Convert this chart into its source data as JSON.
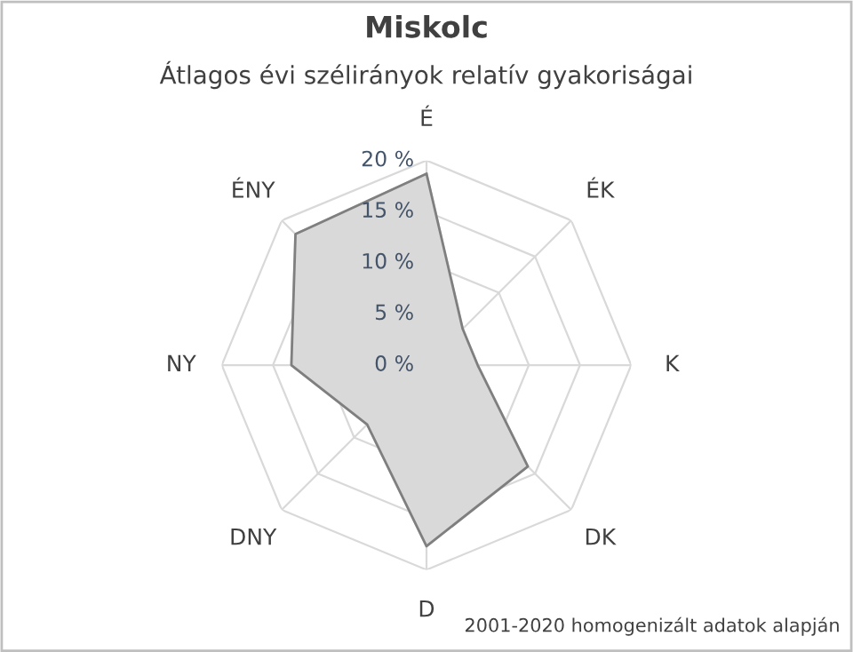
{
  "chart_data": {
    "type": "radar",
    "title": "Miskolc",
    "subtitle": "Átlagos évi szélirányok relatív gyakoriságai",
    "categories": [
      "É",
      "ÉK",
      "K",
      "DK",
      "D",
      "DNY",
      "NY",
      "ÉNY"
    ],
    "series": [
      {
        "color": "#d9d9d9",
        "values": [
          18.7,
          5.0,
          5.0,
          14.0,
          17.7,
          8.2,
          13.2,
          18.1
        ]
      }
    ],
    "ylim": [
      0,
      20
    ],
    "yticks": [
      {
        "value": 0,
        "label": "0 %"
      },
      {
        "value": 5,
        "label": "5 %"
      },
      {
        "value": 10,
        "label": "10 %"
      },
      {
        "value": 15,
        "label": "15 %"
      },
      {
        "value": 20,
        "label": "20 %"
      }
    ],
    "grid": true,
    "legend": false,
    "annotations": [
      "2001-2020 homogenizált adatok alapján"
    ]
  }
}
